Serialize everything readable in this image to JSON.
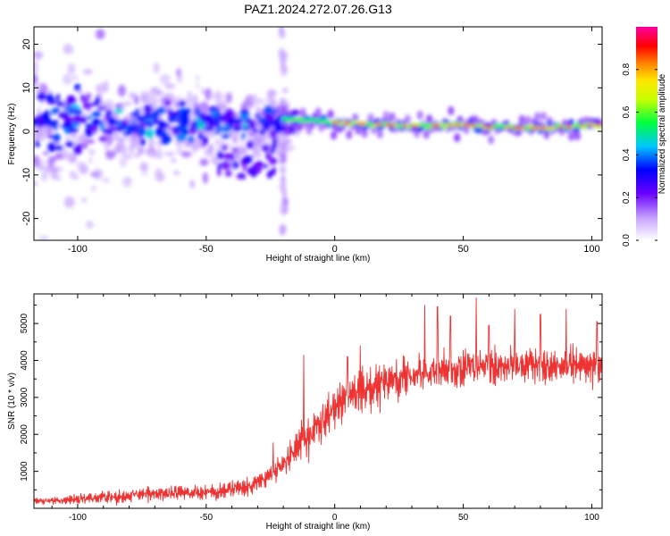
{
  "title": "PAZ1.2024.272.07.26.G13",
  "colors": {
    "snr_line": "#ee3333",
    "frame": "#000000"
  },
  "chart_data": [
    {
      "type": "heatmap",
      "xlabel": "Height of straight line (km)",
      "ylabel": "Frequency (Hz)",
      "xlim": [
        -117,
        104
      ],
      "ylim": [
        -25,
        24
      ],
      "xticks": [
        -100,
        -50,
        0,
        50,
        100
      ],
      "yticks": [
        -20,
        -10,
        0,
        10,
        20
      ],
      "colorbar": {
        "label": "Normalized spectral amplitude",
        "range": [
          0,
          1
        ],
        "ticks": [
          0.0,
          0.2,
          0.4,
          0.6,
          0.8
        ],
        "tick_labels": [
          "0.0",
          "0.2",
          "0.4",
          "0.6",
          "0.8"
        ],
        "colormap": "rainbow (white → purple → blue → cyan → green → yellow → orange → red → magenta)"
      },
      "ridge": {
        "description": "dominant frequency near 1-2 Hz above -20 km",
        "points": [
          [
            -20,
            3.0
          ],
          [
            -10,
            2.5
          ],
          [
            0,
            2.0
          ],
          [
            10,
            1.8
          ],
          [
            20,
            1.5
          ],
          [
            30,
            1.2
          ],
          [
            40,
            1.3
          ],
          [
            50,
            1.5
          ],
          [
            60,
            1.0
          ],
          [
            70,
            0.8
          ],
          [
            80,
            0.8
          ],
          [
            90,
            1.0
          ],
          [
            100,
            1.5
          ]
        ]
      }
    },
    {
      "type": "line",
      "xlabel": "Height of straight line (km)",
      "ylabel": "SNR (10 * v/v)",
      "xlim": [
        -117,
        104
      ],
      "ylim": [
        0,
        5800
      ],
      "xticks": [
        -100,
        -50,
        0,
        50,
        100
      ],
      "yticks": [
        1000,
        2000,
        3000,
        4000,
        5000
      ],
      "series": [
        {
          "color": "#ee3333",
          "x": [
            -117,
            -110,
            -100,
            -90,
            -80,
            -70,
            -60,
            -50,
            -40,
            -30,
            -25,
            -20,
            -15,
            -10,
            -5,
            0,
            5,
            10,
            20,
            30,
            40,
            50,
            60,
            70,
            80,
            90,
            100,
            104
          ],
          "y": [
            200,
            200,
            250,
            300,
            350,
            400,
            420,
            450,
            500,
            700,
            900,
            1200,
            1600,
            2000,
            2400,
            2700,
            3000,
            3200,
            3400,
            3600,
            3700,
            3800,
            3800,
            3850,
            3900,
            3900,
            3800,
            3800
          ],
          "spread": [
            150,
            150,
            200,
            250,
            300,
            300,
            350,
            350,
            400,
            450,
            500,
            600,
            800,
            900,
            900,
            900,
            900,
            900,
            900,
            800,
            900,
            800,
            800,
            700,
            800,
            800,
            800,
            800
          ],
          "peaks": [
            [
              -24,
              1780
            ],
            [
              -12,
              4150
            ],
            [
              5,
              4100
            ],
            [
              10,
              4400
            ],
            [
              35,
              5500
            ],
            [
              40,
              5450
            ],
            [
              45,
              5200
            ],
            [
              55,
              5700
            ],
            [
              60,
              4950
            ],
            [
              70,
              5400
            ],
            [
              80,
              5250
            ],
            [
              90,
              5400
            ],
            [
              102,
              5050
            ]
          ]
        }
      ]
    }
  ]
}
